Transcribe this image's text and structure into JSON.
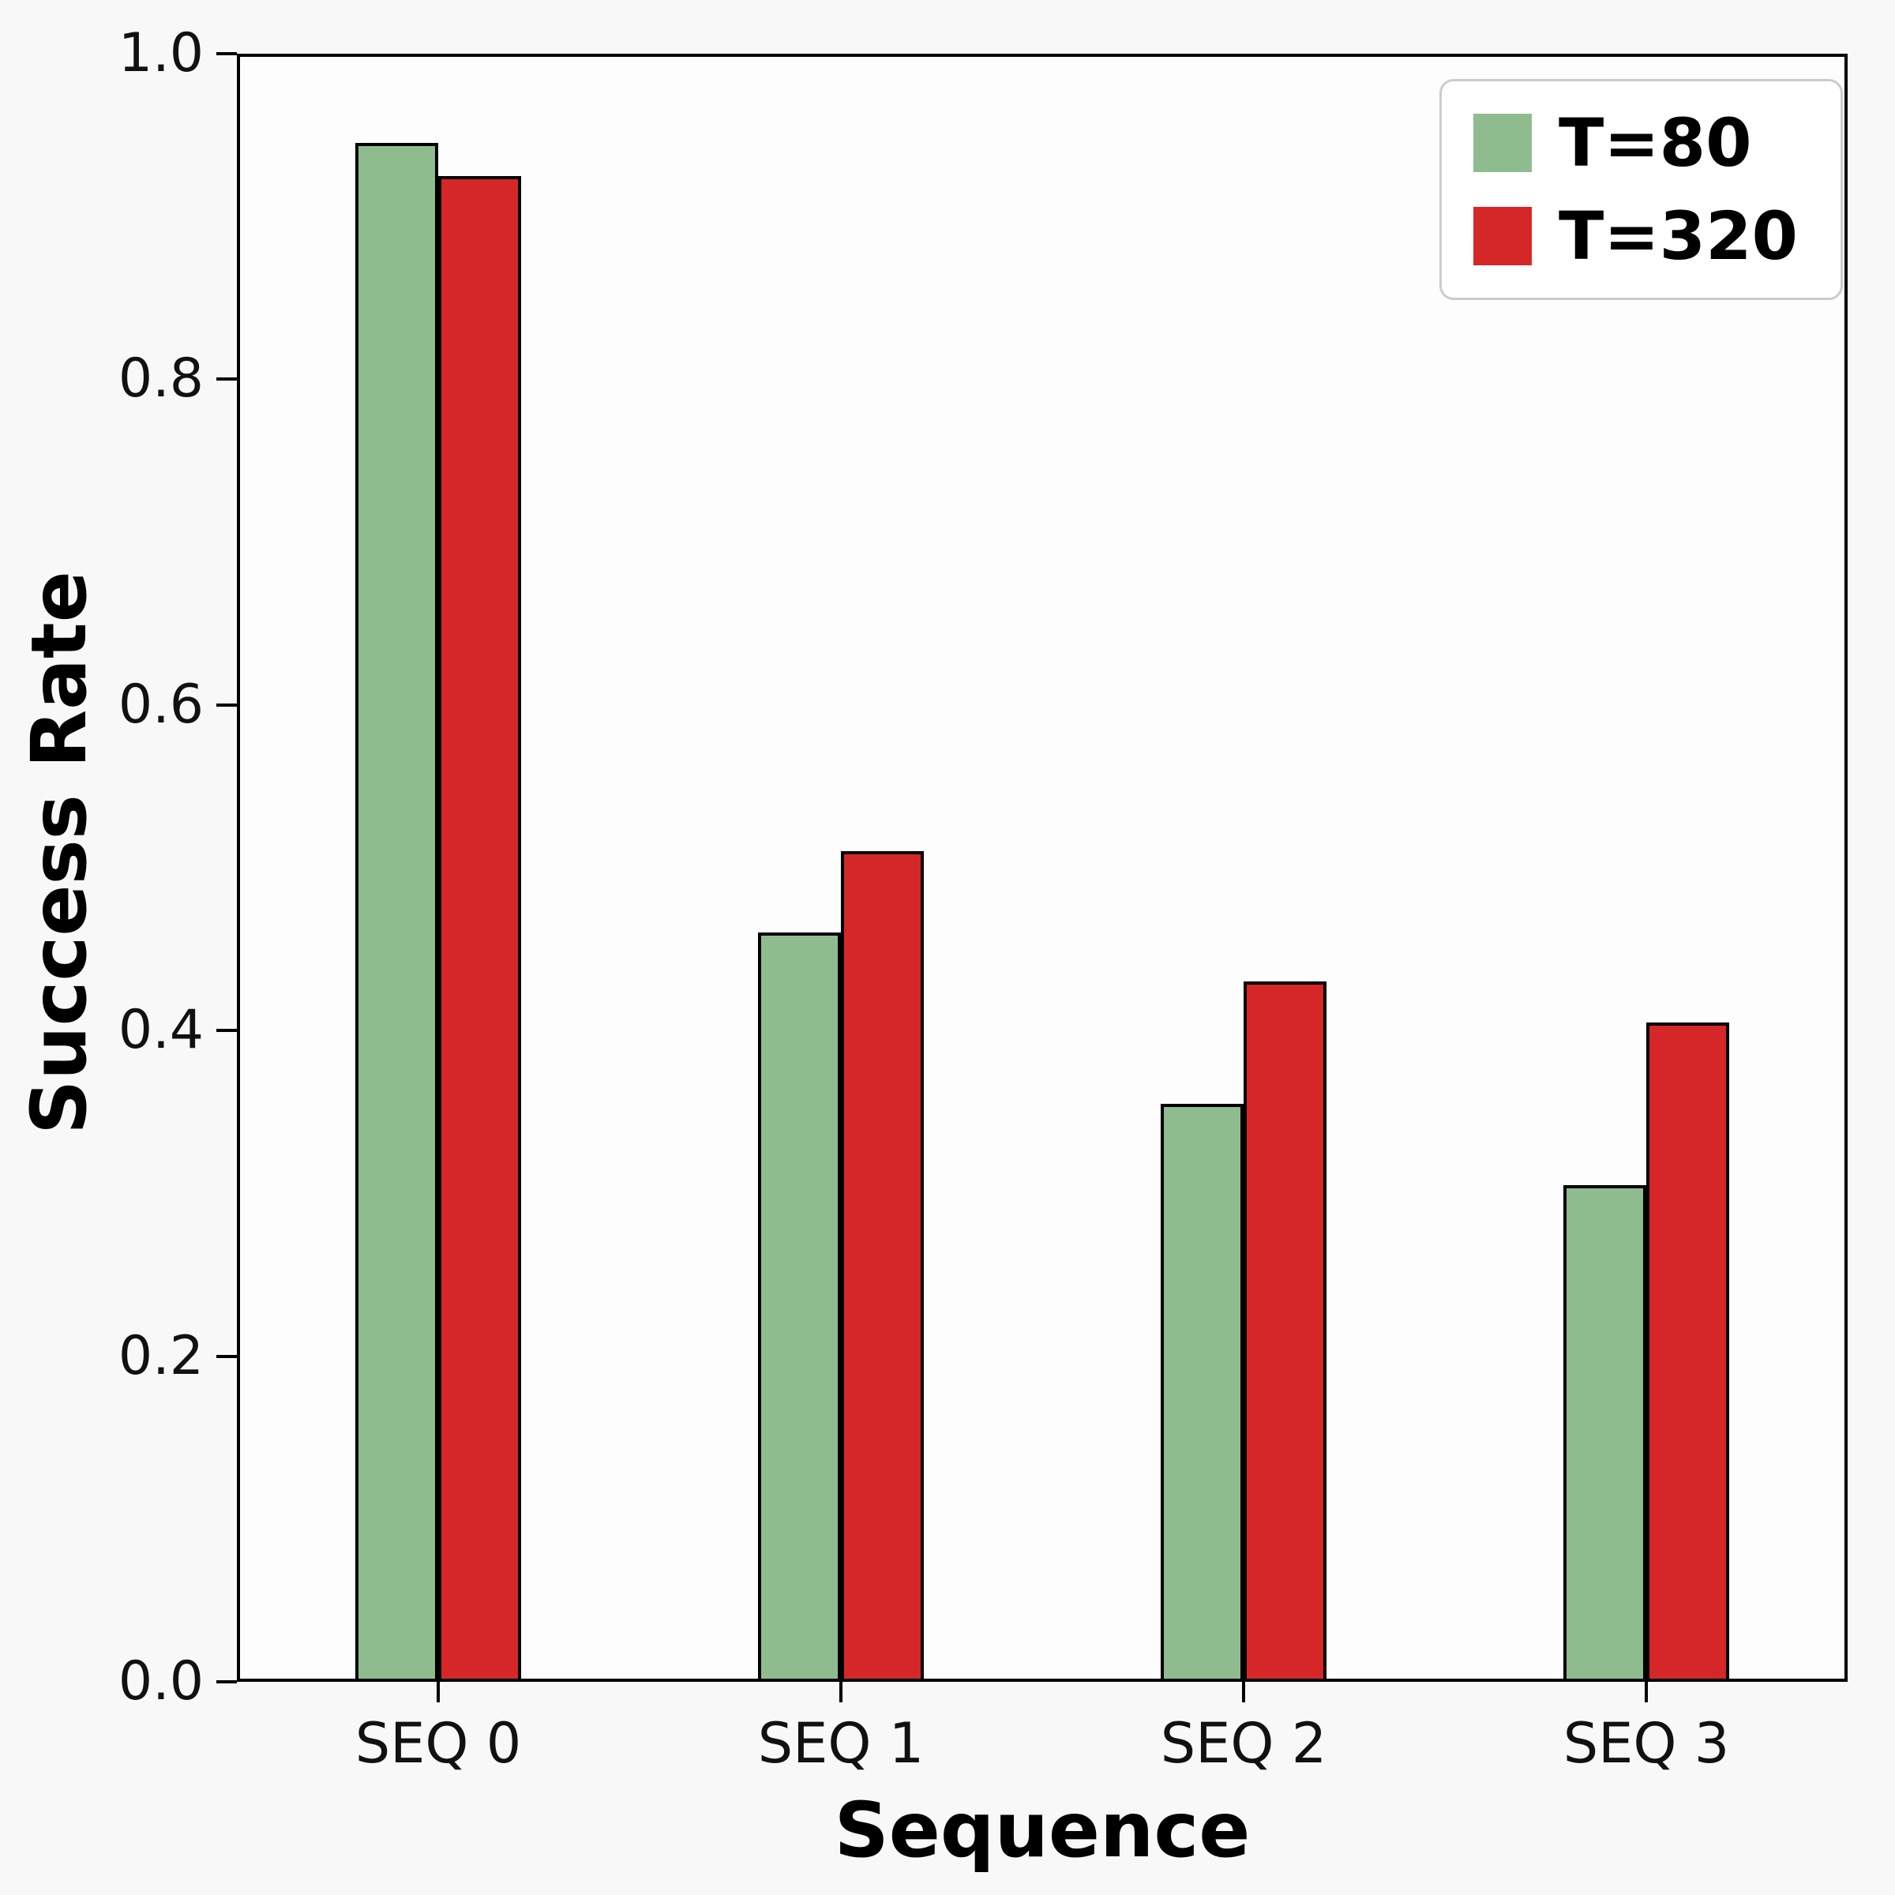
{
  "chart_data": {
    "type": "bar",
    "title": "",
    "xlabel": "Sequence",
    "ylabel": "Success Rate",
    "categories": [
      "SEQ 0",
      "SEQ 1",
      "SEQ 2",
      "SEQ 3"
    ],
    "series": [
      {
        "name": "T=80",
        "color": "#8fbc8f",
        "values": [
          0.945,
          0.46,
          0.355,
          0.305
        ]
      },
      {
        "name": "T=320",
        "color": "#d62728",
        "values": [
          0.925,
          0.51,
          0.43,
          0.405
        ]
      }
    ],
    "ylim": [
      0.0,
      1.0
    ],
    "yticks": [
      "0.0",
      "0.2",
      "0.4",
      "0.6",
      "0.8",
      "1.0"
    ],
    "grid": false,
    "legend_position": "upper right",
    "bar_edge_color": "#000000",
    "background_color": "#f8f8f9"
  }
}
